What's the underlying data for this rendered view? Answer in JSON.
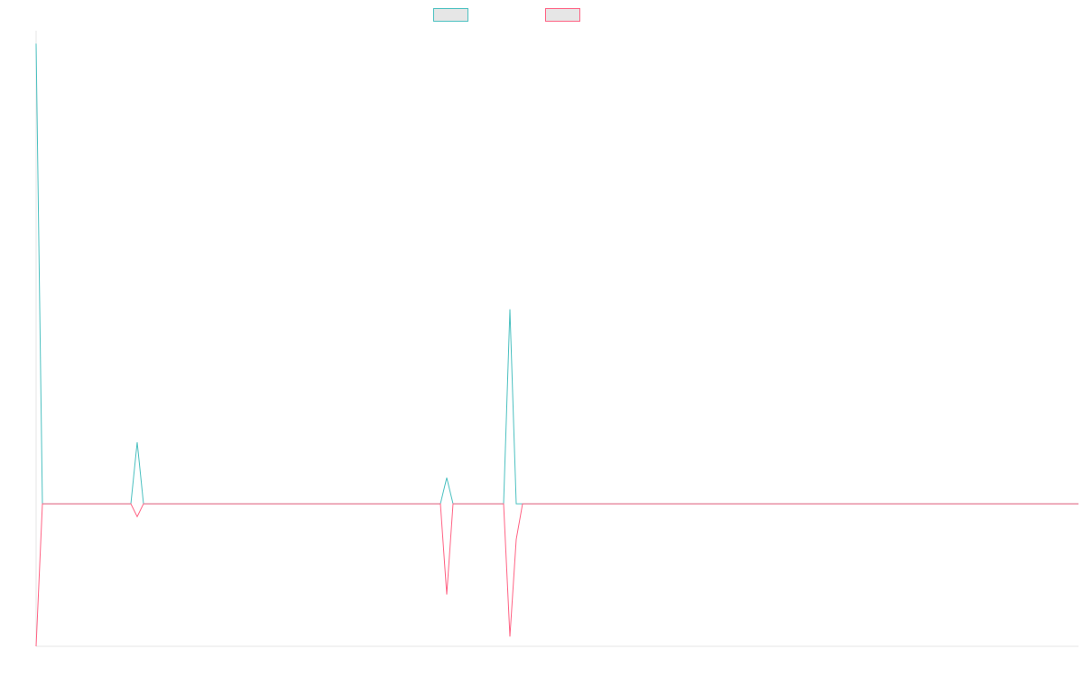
{
  "chart_data": {
    "type": "line",
    "title": "",
    "xlabel": "",
    "ylabel": "",
    "grid": false,
    "legend_position": "top-center",
    "ylim": [
      -2.2,
      7.3
    ],
    "x_count": 166,
    "series": [
      {
        "name": "",
        "color": "#4bc0c0",
        "points": [
          [
            0,
            7.1
          ],
          [
            1,
            0
          ],
          [
            15,
            0
          ],
          [
            16,
            0.95
          ],
          [
            17,
            0
          ],
          [
            64,
            0
          ],
          [
            65,
            0.4
          ],
          [
            66,
            0
          ],
          [
            74,
            0
          ],
          [
            75,
            3.0
          ],
          [
            76,
            0
          ],
          [
            165,
            0
          ]
        ]
      },
      {
        "name": "",
        "color": "#ff6384",
        "points": [
          [
            0,
            -2.2
          ],
          [
            1,
            0
          ],
          [
            15,
            0
          ],
          [
            16,
            -0.2
          ],
          [
            17,
            0
          ],
          [
            64,
            0
          ],
          [
            65,
            -1.4
          ],
          [
            66,
            0
          ],
          [
            74,
            0
          ],
          [
            75,
            -2.05
          ],
          [
            76,
            -0.55
          ],
          [
            77,
            0
          ],
          [
            165,
            0
          ]
        ]
      }
    ]
  }
}
